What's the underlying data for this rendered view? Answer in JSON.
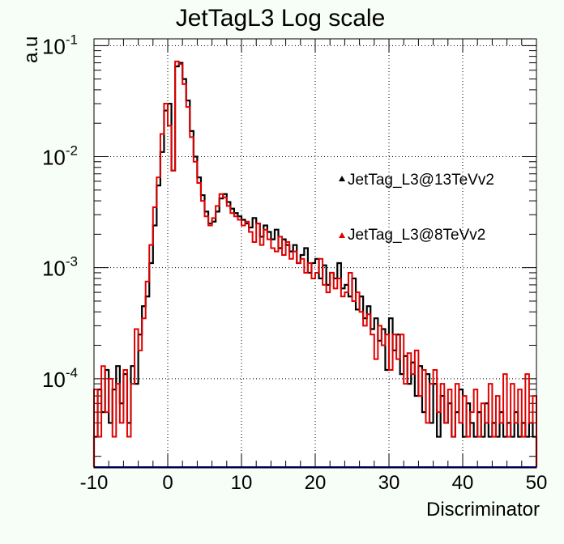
{
  "chart_data": {
    "type": "line",
    "title": "JetTagL3 Log scale",
    "xlabel": "Discriminator",
    "ylabel": "a.u",
    "xlim": [
      -10,
      50
    ],
    "ylim": [
      1.6e-05,
      0.115
    ],
    "yscale": "log",
    "grid": true,
    "legend_position": "right",
    "x_ticks": [
      {
        "v": -10,
        "label": "-10"
      },
      {
        "v": 0,
        "label": "0"
      },
      {
        "v": 10,
        "label": "10"
      },
      {
        "v": 20,
        "label": "20"
      },
      {
        "v": 30,
        "label": "30"
      },
      {
        "v": 40,
        "label": "40"
      },
      {
        "v": 50,
        "label": "50"
      }
    ],
    "y_ticks": [
      {
        "v": 0.0001,
        "base": "10",
        "exp": "-4"
      },
      {
        "v": 0.001,
        "base": "10",
        "exp": "-3"
      },
      {
        "v": 0.01,
        "base": "10",
        "exp": "-2"
      },
      {
        "v": 0.1,
        "base": "10",
        "exp": "-1"
      }
    ],
    "series": [
      {
        "name": "JetTag_L3@13TeVv2",
        "color": "#000000",
        "points": [
          [
            -10.0,
            3e-05
          ],
          [
            -9.5,
            8e-05
          ],
          [
            -9.0,
            5e-05
          ],
          [
            -8.5,
            0.00012
          ],
          [
            -8.0,
            4e-05
          ],
          [
            -7.5,
            8e-05
          ],
          [
            -7.0,
            0.00013
          ],
          [
            -6.5,
            6e-05
          ],
          [
            -6.0,
            0.00011
          ],
          [
            -5.5,
            4e-05
          ],
          [
            -5.0,
            0.00013
          ],
          [
            -4.5,
            9e-05
          ],
          [
            -4.0,
            0.00025
          ],
          [
            -3.5,
            0.00045
          ],
          [
            -3.0,
            0.00055
          ],
          [
            -2.5,
            0.0011
          ],
          [
            -2.0,
            0.0024
          ],
          [
            -1.5,
            0.0055
          ],
          [
            -1.0,
            0.011
          ],
          [
            -0.5,
            0.026
          ],
          [
            0.0,
            0.03
          ],
          [
            0.5,
            0.0075
          ],
          [
            1.0,
            0.065
          ],
          [
            1.5,
            0.07
          ],
          [
            2.0,
            0.05
          ],
          [
            2.5,
            0.032
          ],
          [
            3.0,
            0.017
          ],
          [
            3.5,
            0.01
          ],
          [
            4.0,
            0.0065
          ],
          [
            4.5,
            0.0045
          ],
          [
            5.0,
            0.0032
          ],
          [
            5.5,
            0.0025
          ],
          [
            6.0,
            0.0026
          ],
          [
            6.5,
            0.0032
          ],
          [
            7.0,
            0.0042
          ],
          [
            7.5,
            0.0046
          ],
          [
            8.0,
            0.0039
          ],
          [
            8.5,
            0.0034
          ],
          [
            9.0,
            0.0031
          ],
          [
            9.5,
            0.0029
          ],
          [
            10.0,
            0.0027
          ],
          [
            10.5,
            0.0025
          ],
          [
            11.0,
            0.0023
          ],
          [
            11.5,
            0.0028
          ],
          [
            12.0,
            0.0025
          ],
          [
            12.5,
            0.0019
          ],
          [
            13.0,
            0.0024
          ],
          [
            13.5,
            0.0021
          ],
          [
            14.0,
            0.0018
          ],
          [
            14.5,
            0.0022
          ],
          [
            15.0,
            0.0015
          ],
          [
            15.5,
            0.0018
          ],
          [
            16.0,
            0.0016
          ],
          [
            16.5,
            0.0014
          ],
          [
            17.0,
            0.0016
          ],
          [
            17.5,
            0.0011
          ],
          [
            18.0,
            0.0013
          ],
          [
            18.5,
            0.0015
          ],
          [
            19.0,
            0.0009
          ],
          [
            19.5,
            0.0011
          ],
          [
            20.0,
            0.0012
          ],
          [
            20.5,
            0.0008
          ],
          [
            21.0,
            0.00105
          ],
          [
            21.5,
            0.0007
          ],
          [
            22.0,
            0.0009
          ],
          [
            22.5,
            0.0008
          ],
          [
            23.0,
            0.0011
          ],
          [
            23.5,
            0.00065
          ],
          [
            24.0,
            0.0007
          ],
          [
            24.5,
            0.00055
          ],
          [
            25.0,
            0.0008
          ],
          [
            25.5,
            0.00042
          ],
          [
            26.0,
            0.00055
          ],
          [
            26.5,
            0.00035
          ],
          [
            27.0,
            0.00045
          ],
          [
            27.5,
            0.00028
          ],
          [
            28.0,
            0.00035
          ],
          [
            28.5,
            0.00022
          ],
          [
            29.0,
            0.00028
          ],
          [
            29.5,
            0.00012
          ],
          [
            30.0,
            0.00035
          ],
          [
            30.5,
            0.00018
          ],
          [
            31.0,
            0.00025
          ],
          [
            31.5,
            0.00011
          ],
          [
            32.0,
            0.00016
          ],
          [
            32.5,
            9e-05
          ],
          [
            33.0,
            0.00014
          ],
          [
            33.5,
            7e-05
          ],
          [
            34.0,
            0.00013
          ],
          [
            34.5,
            5e-05
          ],
          [
            35.0,
            0.00011
          ],
          [
            35.5,
            4e-05
          ],
          [
            36.0,
            9e-05
          ],
          [
            36.5,
            3e-05
          ],
          [
            37.0,
            7e-05
          ],
          [
            37.5,
            4e-05
          ],
          [
            38.0,
            6e-05
          ],
          [
            38.5,
            3e-05
          ],
          [
            39.0,
            5e-05
          ],
          [
            39.5,
            8e-05
          ],
          [
            40.0,
            3e-05
          ],
          [
            40.5,
            6e-05
          ],
          [
            41.0,
            4e-05
          ],
          [
            41.5,
            3e-05
          ],
          [
            42.0,
            5e-05
          ],
          [
            42.5,
            3e-05
          ],
          [
            43.0,
            6e-05
          ],
          [
            43.5,
            3e-05
          ],
          [
            44.0,
            4e-05
          ],
          [
            44.5,
            3e-05
          ],
          [
            45.0,
            5e-05
          ],
          [
            45.5,
            3e-05
          ],
          [
            46.0,
            4e-05
          ],
          [
            46.5,
            3e-05
          ],
          [
            47.0,
            5e-05
          ],
          [
            47.5,
            3e-05
          ],
          [
            48.0,
            4e-05
          ],
          [
            48.5,
            3e-05
          ],
          [
            49.0,
            4e-05
          ],
          [
            49.5,
            3e-05
          ]
        ]
      },
      {
        "name": "JetTag_L3@8TeVv2",
        "color": "#e00000",
        "points": [
          [
            -10.0,
            8e-05
          ],
          [
            -9.5,
            3e-05
          ],
          [
            -9.0,
            0.00013
          ],
          [
            -8.5,
            5e-05
          ],
          [
            -8.0,
            0.0001
          ],
          [
            -7.5,
            3e-05
          ],
          [
            -7.0,
            9e-05
          ],
          [
            -6.5,
            4e-05
          ],
          [
            -6.0,
            0.00012
          ],
          [
            -5.5,
            3e-05
          ],
          [
            -5.0,
            9e-05
          ],
          [
            -4.5,
            0.00028
          ],
          [
            -4.0,
            0.00018
          ],
          [
            -3.5,
            0.00035
          ],
          [
            -3.0,
            0.00075
          ],
          [
            -2.5,
            0.0016
          ],
          [
            -2.0,
            0.0035
          ],
          [
            -1.5,
            0.0065
          ],
          [
            -1.0,
            0.016
          ],
          [
            -0.5,
            0.03
          ],
          [
            0.0,
            0.019
          ],
          [
            0.5,
            0.0075
          ],
          [
            1.0,
            0.072
          ],
          [
            1.5,
            0.068
          ],
          [
            2.0,
            0.045
          ],
          [
            2.5,
            0.028
          ],
          [
            3.0,
            0.015
          ],
          [
            3.5,
            0.009
          ],
          [
            4.0,
            0.0058
          ],
          [
            4.5,
            0.004
          ],
          [
            5.0,
            0.0029
          ],
          [
            5.5,
            0.0024
          ],
          [
            6.0,
            0.0028
          ],
          [
            6.5,
            0.0036
          ],
          [
            7.0,
            0.0046
          ],
          [
            7.5,
            0.0043
          ],
          [
            8.0,
            0.0036
          ],
          [
            8.5,
            0.0031
          ],
          [
            9.0,
            0.0029
          ],
          [
            9.5,
            0.0027
          ],
          [
            10.0,
            0.0024
          ],
          [
            10.5,
            0.0026
          ],
          [
            11.0,
            0.0021
          ],
          [
            11.5,
            0.0017
          ],
          [
            12.0,
            0.0025
          ],
          [
            12.5,
            0.0016
          ],
          [
            13.0,
            0.0022
          ],
          [
            13.5,
            0.0018
          ],
          [
            14.0,
            0.0015
          ],
          [
            14.5,
            0.0014
          ],
          [
            15.0,
            0.0019
          ],
          [
            15.5,
            0.0013
          ],
          [
            16.0,
            0.0017
          ],
          [
            16.5,
            0.0012
          ],
          [
            17.0,
            0.0014
          ],
          [
            17.5,
            0.0011
          ],
          [
            18.0,
            0.0012
          ],
          [
            18.5,
            0.0009
          ],
          [
            19.0,
            0.0011
          ],
          [
            19.5,
            0.0008
          ],
          [
            20.0,
            0.0009
          ],
          [
            20.5,
            0.0012
          ],
          [
            21.0,
            0.0007
          ],
          [
            21.5,
            0.0006
          ],
          [
            22.0,
            0.0009
          ],
          [
            22.5,
            0.00065
          ],
          [
            23.0,
            0.0008
          ],
          [
            23.5,
            0.00055
          ],
          [
            24.0,
            0.0006
          ],
          [
            24.5,
            0.0009
          ],
          [
            25.0,
            0.0005
          ],
          [
            25.5,
            0.0006
          ],
          [
            26.0,
            0.0004
          ],
          [
            26.5,
            0.0003
          ],
          [
            27.0,
            0.00038
          ],
          [
            27.5,
            0.00025
          ],
          [
            28.0,
            0.00015
          ],
          [
            28.5,
            0.0003
          ],
          [
            29.0,
            0.0002
          ],
          [
            29.5,
            0.00025
          ],
          [
            30.0,
            0.00012
          ],
          [
            30.5,
            0.00025
          ],
          [
            31.0,
            0.00015
          ],
          [
            31.5,
            0.00025
          ],
          [
            32.0,
            9e-05
          ],
          [
            32.5,
            0.00017
          ],
          [
            33.0,
            0.00011
          ],
          [
            33.5,
            0.00018
          ],
          [
            34.0,
            7e-05
          ],
          [
            34.5,
            0.00012
          ],
          [
            35.0,
            4e-05
          ],
          [
            35.5,
            9e-05
          ],
          [
            36.0,
            0.00012
          ],
          [
            36.5,
            5e-05
          ],
          [
            37.0,
            9e-05
          ],
          [
            37.5,
            4e-05
          ],
          [
            38.0,
            8e-05
          ],
          [
            38.5,
            3e-05
          ],
          [
            39.0,
            9e-05
          ],
          [
            39.5,
            4e-05
          ],
          [
            40.0,
            7e-05
          ],
          [
            40.5,
            3e-05
          ],
          [
            41.0,
            5e-05
          ],
          [
            41.5,
            8e-05
          ],
          [
            42.0,
            3e-05
          ],
          [
            42.5,
            6e-05
          ],
          [
            43.0,
            4e-05
          ],
          [
            43.5,
            9e-05
          ],
          [
            44.0,
            3e-05
          ],
          [
            44.5,
            7e-05
          ],
          [
            45.0,
            4e-05
          ],
          [
            45.5,
            0.00011
          ],
          [
            46.0,
            3e-05
          ],
          [
            46.5,
            9e-05
          ],
          [
            47.0,
            4e-05
          ],
          [
            47.5,
            8e-05
          ],
          [
            48.0,
            3e-05
          ],
          [
            48.5,
            0.00011
          ],
          [
            49.0,
            4e-05
          ],
          [
            49.5,
            7e-05
          ]
        ]
      }
    ]
  }
}
